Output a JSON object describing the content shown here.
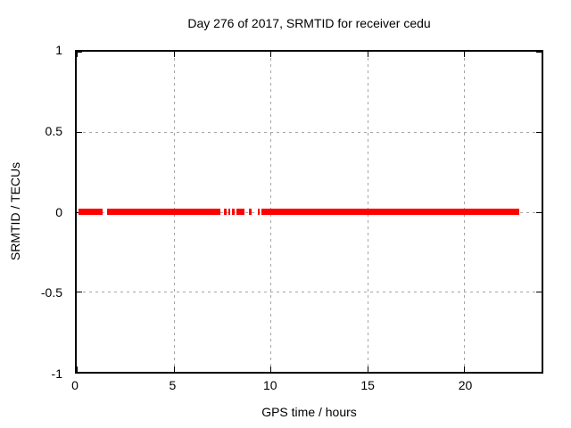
{
  "chart_data": {
    "type": "scatter",
    "title": "Day 276 of 2017, SRMTID for receiver cedu",
    "xlabel": "GPS time / hours",
    "ylabel": "SRMTID / TECUs",
    "xlim": [
      0,
      24
    ],
    "ylim": [
      -1,
      1
    ],
    "xticks": [
      0,
      5,
      10,
      15,
      20
    ],
    "xtick_labels": [
      "0",
      "5",
      "10",
      "15",
      "20"
    ],
    "yticks": [
      1,
      0.5,
      0,
      -0.5,
      -1
    ],
    "ytick_labels": [
      "1",
      "0.5",
      "0",
      "-0.5",
      "-1"
    ],
    "grid": true,
    "legend": false,
    "marker_color": "#ff0000",
    "series": [
      {
        "name": "SRMTID",
        "constant_value": 0,
        "segments_hours": [
          [
            0.09,
            1.33
          ],
          [
            1.55,
            7.41
          ],
          [
            7.59,
            7.73
          ],
          [
            7.82,
            7.91
          ],
          [
            8.0,
            8.14
          ],
          [
            8.23,
            8.64
          ],
          [
            8.91,
            9.01
          ],
          [
            9.33,
            9.46
          ],
          [
            9.55,
            22.86
          ]
        ]
      }
    ],
    "annotation": "All plotted SRMTID values lie at approximately 0 TECUs, drawn as a thick red band along y=0 with data gaps near 1.4 h and between 7.4 h and 9.5 h"
  },
  "colors": {
    "marker": "#ff0000",
    "grid": "#a6a6a6",
    "frame": "#000000",
    "background": "#ffffff",
    "text": "#000000"
  }
}
